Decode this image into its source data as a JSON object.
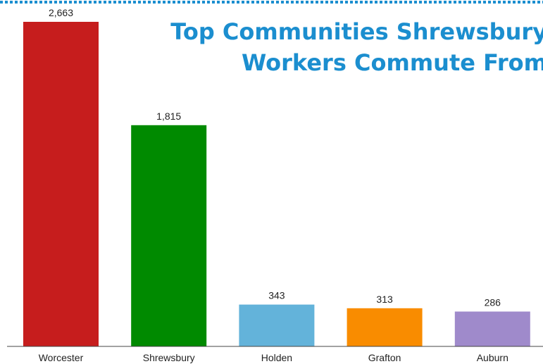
{
  "chart_data": {
    "type": "bar",
    "title_lines": [
      "Top Communities Shrewsbury",
      "Workers Commute From"
    ],
    "categories": [
      "Worcester",
      "Shrewsbury",
      "Holden",
      "Grafton",
      "Auburn"
    ],
    "values": [
      2663,
      1815,
      343,
      313,
      286
    ],
    "value_labels": [
      "2,663",
      "1,815",
      "343",
      "313",
      "286"
    ],
    "colors": [
      "#c61d1d",
      "#008a00",
      "#63b3da",
      "#f98c00",
      "#9f8acb"
    ],
    "title_color": "#1b8ecf",
    "border_color": "#1b8ecf",
    "axis_color": "#444444",
    "xlabel": "",
    "ylabel": "",
    "ylim": [
      0,
      2663
    ],
    "grid": false,
    "legend": "none"
  }
}
